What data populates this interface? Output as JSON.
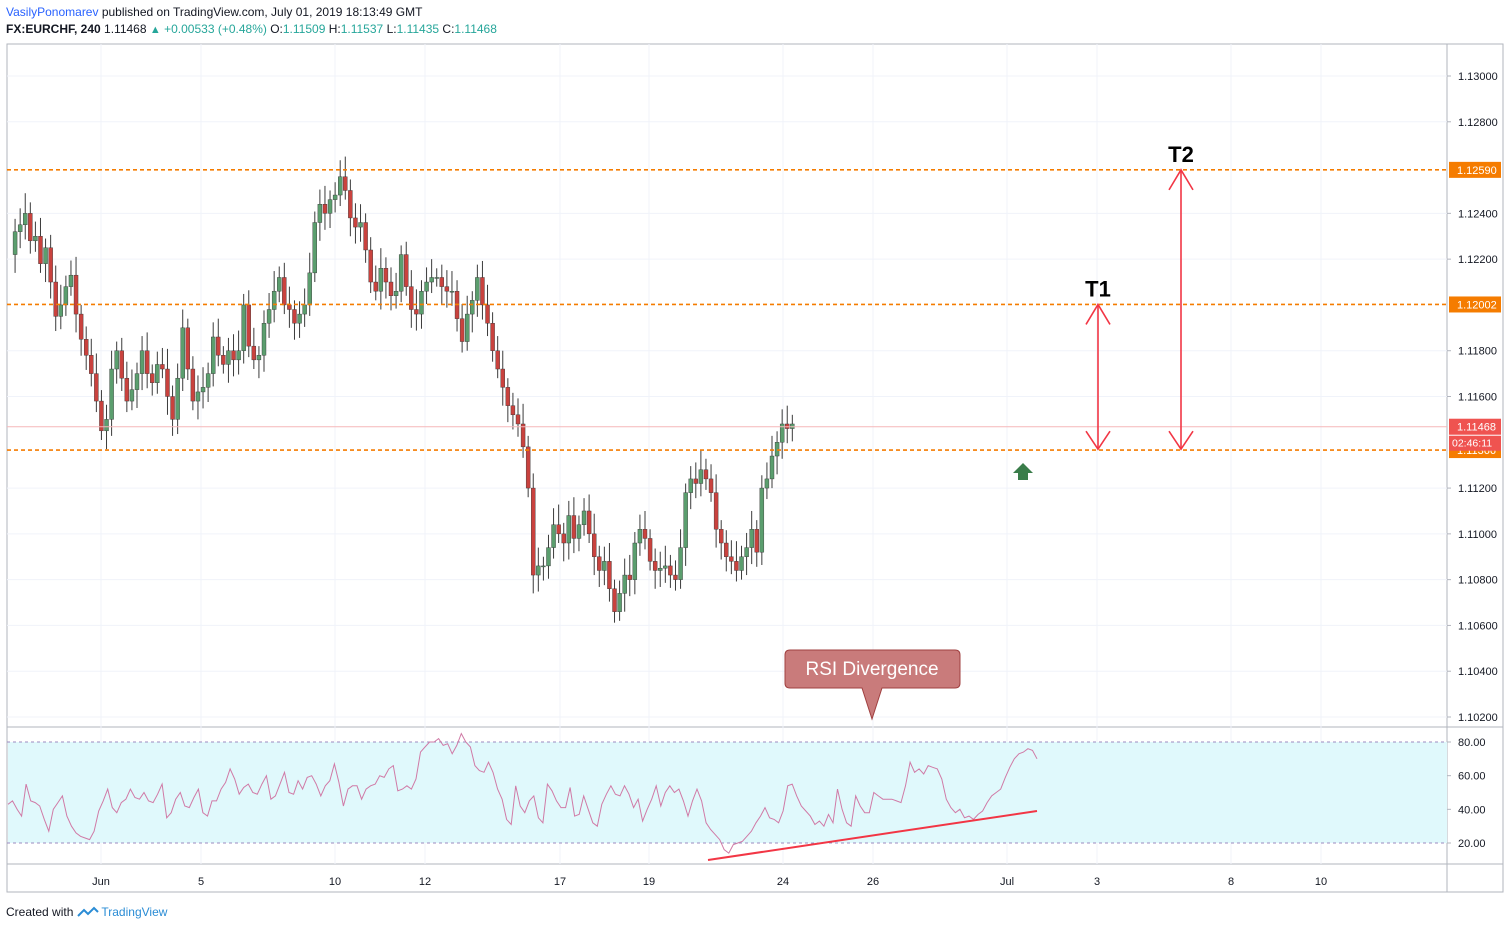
{
  "header": {
    "author": "VasilyPonomarev",
    "published_text": "published on TradingView.com, July 01, 2019 18:13:49 GMT",
    "symbol": "FX:EURCHF, 240",
    "last": "1.11468",
    "change": "+0.00533 (+0.48%)",
    "o_label": "O:",
    "o_value": "1.11509",
    "h_label": "H:",
    "h_value": "1.11537",
    "l_label": "L:",
    "l_value": "1.11435",
    "c_label": "C:",
    "c_value": "1.11468"
  },
  "footer": {
    "created_with": "Created with",
    "brand": "TradingView"
  },
  "colors": {
    "up": "#5b9e6e",
    "down": "#c9423e",
    "wick": "#3b3b3b",
    "level": "#f57c00",
    "arrow": "#f23645",
    "rsi": "#d07aa6",
    "rsi_band": "#e0f9fc",
    "divergence_line": "#f23645",
    "callout_fill": "#c97b7b",
    "callout_border": "#a04040",
    "green_arrow": "#3a7d4a"
  },
  "chart_data": {
    "type": "candlestick",
    "price_axis": {
      "ticks": [
        "1.13000",
        "1.12800",
        "1.12400",
        "1.12200",
        "1.11800",
        "1.11600",
        "1.11200",
        "1.11000",
        "1.10800",
        "1.10600",
        "1.10400",
        "1.10200"
      ],
      "ylim": [
        1.1019,
        1.1316
      ]
    },
    "time_axis": {
      "ticks": [
        "Jun",
        "5",
        "10",
        "12",
        "17",
        "19",
        "24",
        "26",
        "Jul",
        "3",
        "8",
        "10"
      ]
    },
    "levels": [
      {
        "value": 1.1259,
        "label": "1.12590"
      },
      {
        "value": 1.12002,
        "label": "1.12002"
      },
      {
        "value": 1.11366,
        "label": "1.11366"
      }
    ],
    "current_price": {
      "value": 1.11468,
      "label": "1.11468",
      "countdown": "02:46:11"
    },
    "targets": [
      {
        "label": "T1",
        "from": 1.1137,
        "to": 1.12002
      },
      {
        "label": "T2",
        "from": 1.1137,
        "to": 1.1259
      }
    ],
    "callout": "RSI Divergence",
    "rsi": {
      "ticks": [
        "80.00",
        "60.00",
        "40.00",
        "20.00"
      ],
      "upper": 80,
      "lower": 20,
      "ylim": [
        12,
        88
      ],
      "values": [
        43,
        45,
        40,
        36,
        55,
        45,
        44,
        42,
        34,
        27,
        40,
        44,
        48,
        36,
        30,
        26,
        24,
        23,
        22,
        27,
        39,
        45,
        52,
        41,
        38,
        44,
        46,
        52,
        47,
        46,
        50,
        45,
        44,
        49,
        55,
        35,
        38,
        46,
        50,
        42,
        41,
        47,
        52,
        38,
        36,
        45,
        45,
        52,
        56,
        64,
        58,
        49,
        53,
        55,
        50,
        49,
        55,
        60,
        46,
        48,
        55,
        62,
        50,
        49,
        57,
        52,
        59,
        60,
        55,
        48,
        54,
        57,
        67,
        56,
        42,
        52,
        54,
        54,
        46,
        52,
        54,
        55,
        60,
        59,
        64,
        66,
        51,
        52,
        54,
        52,
        58,
        74,
        77,
        80,
        80,
        82,
        78,
        79,
        73,
        78,
        85,
        80,
        77,
        66,
        63,
        62,
        68,
        62,
        52,
        46,
        34,
        31,
        54,
        42,
        38,
        45,
        48,
        35,
        32,
        55,
        51,
        45,
        41,
        41,
        53,
        36,
        37,
        48,
        40,
        32,
        30,
        43,
        49,
        54,
        49,
        48,
        54,
        49,
        41,
        46,
        33,
        40,
        46,
        54,
        42,
        50,
        54,
        50,
        52,
        45,
        36,
        45,
        52,
        45,
        32,
        28,
        25,
        22,
        16,
        14,
        19,
        20,
        21,
        24,
        27,
        32,
        36,
        41,
        35,
        34,
        32,
        39,
        54,
        55,
        48,
        42,
        39,
        36,
        31,
        33,
        30,
        37,
        32,
        52,
        40,
        32,
        30,
        48,
        42,
        38,
        38,
        50,
        48,
        46,
        46,
        46,
        45,
        44,
        54,
        68,
        62,
        64,
        61,
        66,
        65,
        64,
        58,
        46,
        41,
        38,
        40,
        35,
        36,
        34,
        37,
        39,
        44,
        48,
        50,
        52,
        59,
        65,
        70,
        73,
        74,
        76,
        75,
        70
      ],
      "divergence": [
        {
          "x": 0,
          "y": 10
        },
        {
          "x": 1,
          "y": 40
        }
      ]
    }
  }
}
